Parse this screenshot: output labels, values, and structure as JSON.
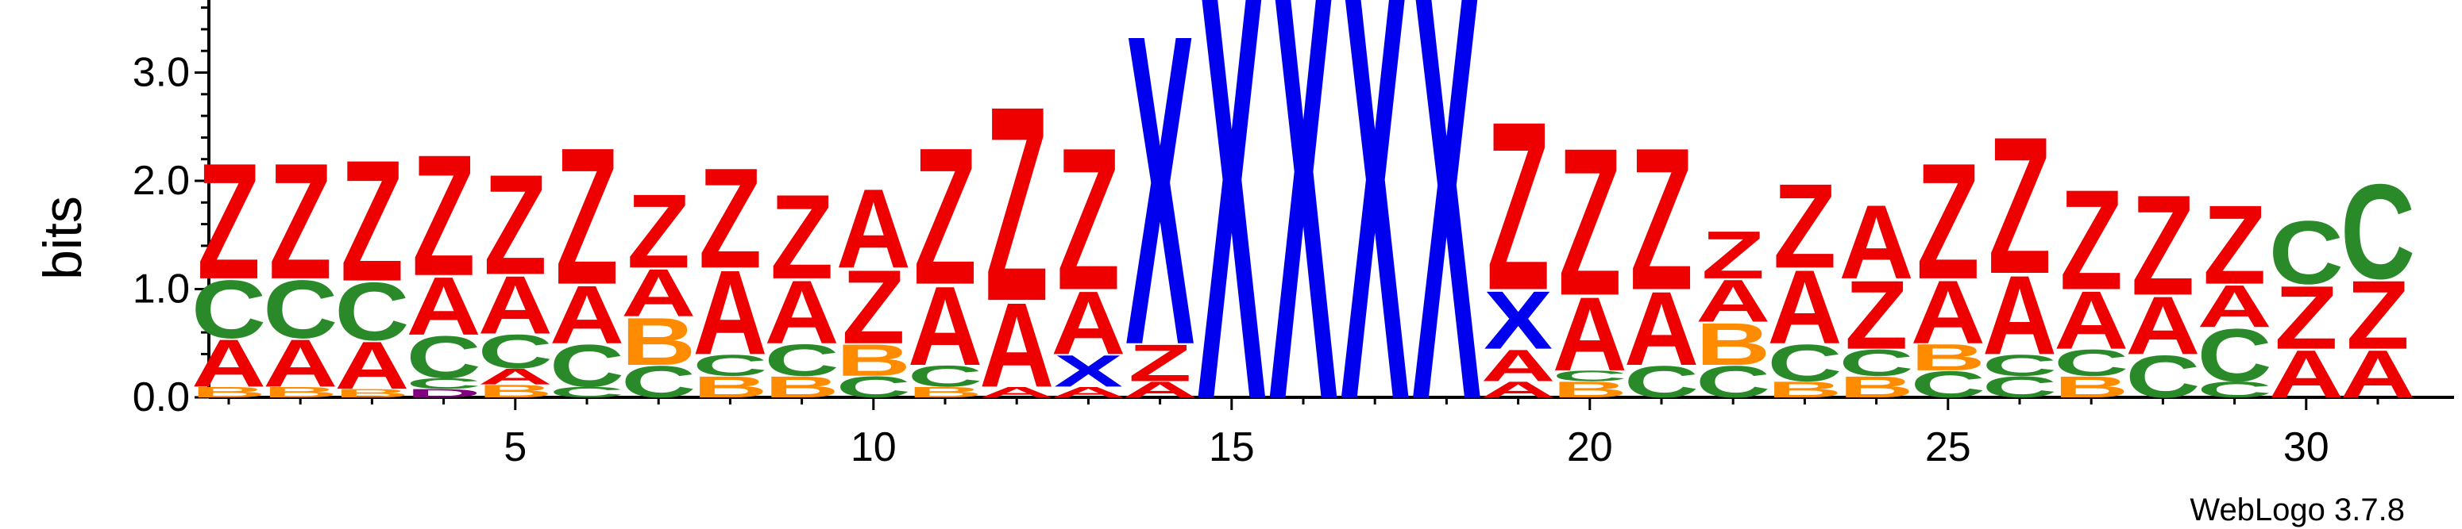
{
  "chart_data": {
    "type": "sequence_logo",
    "ylabel": "bits",
    "ylim": [
      0,
      4.0
    ],
    "yticks": [
      "0.0",
      "1.0",
      "2.0",
      "3.0",
      "4.0"
    ],
    "xticks": [
      5,
      10,
      15,
      20,
      25,
      30
    ],
    "xrange": [
      1,
      31
    ],
    "credit": "WebLogo 3.7.8",
    "colors": {
      "Z": "#ee0000",
      "A": "#ee0000",
      "C": "#2a8a2a",
      "B": "#ff8c00",
      "X": "#0000ee",
      "D": "#800080"
    },
    "positions": [
      {
        "pos": 1,
        "letters": [
          {
            "l": "B",
            "h": 0.1
          },
          {
            "l": "A",
            "h": 0.45
          },
          {
            "l": "C",
            "h": 0.55
          },
          {
            "l": "Z",
            "h": 1.1
          }
        ]
      },
      {
        "pos": 2,
        "letters": [
          {
            "l": "B",
            "h": 0.1
          },
          {
            "l": "A",
            "h": 0.45
          },
          {
            "l": "C",
            "h": 0.55
          },
          {
            "l": "Z",
            "h": 1.1
          }
        ]
      },
      {
        "pos": 3,
        "letters": [
          {
            "l": "B",
            "h": 0.08
          },
          {
            "l": "A",
            "h": 0.45
          },
          {
            "l": "C",
            "h": 0.55
          },
          {
            "l": "Z",
            "h": 1.15
          }
        ]
      },
      {
        "pos": 4,
        "letters": [
          {
            "l": "D",
            "h": 0.08
          },
          {
            "l": "C",
            "h": 0.1
          },
          {
            "l": "C",
            "h": 0.4
          },
          {
            "l": "A",
            "h": 0.55
          },
          {
            "l": "Z",
            "h": 1.15
          }
        ]
      },
      {
        "pos": 5,
        "letters": [
          {
            "l": "B",
            "h": 0.12
          },
          {
            "l": "A",
            "h": 0.15
          },
          {
            "l": "C",
            "h": 0.32
          },
          {
            "l": "A",
            "h": 0.55
          },
          {
            "l": "Z",
            "h": 0.95
          }
        ]
      },
      {
        "pos": 6,
        "letters": [
          {
            "l": "C",
            "h": 0.1
          },
          {
            "l": "C",
            "h": 0.4
          },
          {
            "l": "A",
            "h": 0.55
          },
          {
            "l": "Z",
            "h": 1.3
          }
        ]
      },
      {
        "pos": 7,
        "letters": [
          {
            "l": "C",
            "h": 0.3
          },
          {
            "l": "B",
            "h": 0.45
          },
          {
            "l": "A",
            "h": 0.45
          },
          {
            "l": "Z",
            "h": 0.7
          }
        ]
      },
      {
        "pos": 8,
        "letters": [
          {
            "l": "B",
            "h": 0.2
          },
          {
            "l": "C",
            "h": 0.2
          },
          {
            "l": "A",
            "h": 0.8
          },
          {
            "l": "Z",
            "h": 0.95
          }
        ]
      },
      {
        "pos": 9,
        "letters": [
          {
            "l": "B",
            "h": 0.2
          },
          {
            "l": "C",
            "h": 0.3
          },
          {
            "l": "A",
            "h": 0.6
          },
          {
            "l": "Z",
            "h": 0.8
          }
        ]
      },
      {
        "pos": 10,
        "letters": [
          {
            "l": "C",
            "h": 0.2
          },
          {
            "l": "B",
            "h": 0.3
          },
          {
            "l": "Z",
            "h": 0.7
          },
          {
            "l": "A",
            "h": 0.75
          }
        ]
      },
      {
        "pos": 11,
        "letters": [
          {
            "l": "B",
            "h": 0.1
          },
          {
            "l": "C",
            "h": 0.2
          },
          {
            "l": "A",
            "h": 0.75
          },
          {
            "l": "Z",
            "h": 1.3
          }
        ]
      },
      {
        "pos": 12,
        "letters": [
          {
            "l": "A",
            "h": 0.1
          },
          {
            "l": "A",
            "h": 0.8
          },
          {
            "l": "Z",
            "h": 1.85
          }
        ]
      },
      {
        "pos": 13,
        "letters": [
          {
            "l": "A",
            "h": 0.1
          },
          {
            "l": "X",
            "h": 0.3
          },
          {
            "l": "A",
            "h": 0.6
          },
          {
            "l": "Z",
            "h": 1.35
          }
        ]
      },
      {
        "pos": 14,
        "letters": [
          {
            "l": "A",
            "h": 0.15
          },
          {
            "l": "Z",
            "h": 0.35
          },
          {
            "l": "X",
            "h": 2.95
          }
        ]
      },
      {
        "pos": 15,
        "letters": [
          {
            "l": "X",
            "h": 4.0
          }
        ]
      },
      {
        "pos": 16,
        "letters": [
          {
            "l": "X",
            "h": 4.15
          }
        ]
      },
      {
        "pos": 17,
        "letters": [
          {
            "l": "X",
            "h": 4.0
          }
        ]
      },
      {
        "pos": 18,
        "letters": [
          {
            "l": "X",
            "h": 3.9
          }
        ]
      },
      {
        "pos": 19,
        "letters": [
          {
            "l": "A",
            "h": 0.15
          },
          {
            "l": "A",
            "h": 0.3
          },
          {
            "l": "X",
            "h": 0.55
          },
          {
            "l": "Z",
            "h": 1.6
          }
        ]
      },
      {
        "pos": 20,
        "letters": [
          {
            "l": "B",
            "h": 0.15
          },
          {
            "l": "C",
            "h": 0.1
          },
          {
            "l": "A",
            "h": 0.7
          },
          {
            "l": "Z",
            "h": 1.4
          }
        ]
      },
      {
        "pos": 21,
        "letters": [
          {
            "l": "C",
            "h": 0.3
          },
          {
            "l": "A",
            "h": 0.7
          },
          {
            "l": "Z",
            "h": 1.35
          }
        ]
      },
      {
        "pos": 22,
        "letters": [
          {
            "l": "C",
            "h": 0.3
          },
          {
            "l": "B",
            "h": 0.4
          },
          {
            "l": "A",
            "h": 0.4
          },
          {
            "l": "Z",
            "h": 0.45
          }
        ]
      },
      {
        "pos": 23,
        "letters": [
          {
            "l": "B",
            "h": 0.15
          },
          {
            "l": "C",
            "h": 0.35
          },
          {
            "l": "A",
            "h": 0.7
          },
          {
            "l": "Z",
            "h": 0.8
          }
        ]
      },
      {
        "pos": 24,
        "letters": [
          {
            "l": "B",
            "h": 0.2
          },
          {
            "l": "C",
            "h": 0.25
          },
          {
            "l": "Z",
            "h": 0.65
          },
          {
            "l": "A",
            "h": 0.7
          }
        ]
      },
      {
        "pos": 25,
        "letters": [
          {
            "l": "C",
            "h": 0.25
          },
          {
            "l": "B",
            "h": 0.25
          },
          {
            "l": "A",
            "h": 0.6
          },
          {
            "l": "Z",
            "h": 1.1
          }
        ]
      },
      {
        "pos": 26,
        "letters": [
          {
            "l": "C",
            "h": 0.2
          },
          {
            "l": "C",
            "h": 0.2
          },
          {
            "l": "A",
            "h": 0.75
          },
          {
            "l": "Z",
            "h": 1.3
          }
        ]
      },
      {
        "pos": 27,
        "letters": [
          {
            "l": "B",
            "h": 0.2
          },
          {
            "l": "C",
            "h": 0.25
          },
          {
            "l": "A",
            "h": 0.55
          },
          {
            "l": "Z",
            "h": 0.95
          }
        ]
      },
      {
        "pos": 28,
        "letters": [
          {
            "l": "C",
            "h": 0.4
          },
          {
            "l": "A",
            "h": 0.55
          },
          {
            "l": "Z",
            "h": 0.95
          }
        ]
      },
      {
        "pos": 29,
        "letters": [
          {
            "l": "C",
            "h": 0.15
          },
          {
            "l": "C",
            "h": 0.5
          },
          {
            "l": "A",
            "h": 0.4
          },
          {
            "l": "Z",
            "h": 0.75
          }
        ]
      },
      {
        "pos": 30,
        "letters": [
          {
            "l": "A",
            "h": 0.45
          },
          {
            "l": "Z",
            "h": 0.6
          },
          {
            "l": "C",
            "h": 0.6
          }
        ]
      },
      {
        "pos": 31,
        "letters": [
          {
            "l": "A",
            "h": 0.45
          },
          {
            "l": "Z",
            "h": 0.65
          },
          {
            "l": "C",
            "h": 0.9
          }
        ]
      }
    ]
  }
}
